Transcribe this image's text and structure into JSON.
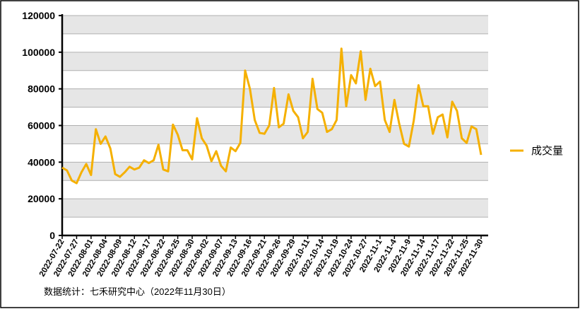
{
  "chart_data": {
    "type": "line",
    "categories": [
      "2022-07-22",
      null,
      null,
      "2022-07-27",
      null,
      null,
      "2022-08-01",
      null,
      null,
      "2022-08-04",
      null,
      null,
      "2022-08-09",
      null,
      null,
      "2022-08-12",
      null,
      null,
      "2022-08-17",
      null,
      null,
      "2022-08-22",
      null,
      null,
      "2022-08-25",
      null,
      null,
      "2022-08-30",
      null,
      null,
      "2022-09-02",
      null,
      null,
      "2022-09-07",
      null,
      null,
      "2022-09-13",
      null,
      null,
      "2022-09-16",
      null,
      null,
      "2022-09-21",
      null,
      null,
      "2022-09-26",
      null,
      null,
      "2022-09-29",
      null,
      null,
      "2022-10-11",
      null,
      null,
      "2022-10-14",
      null,
      null,
      "2022-10-19",
      null,
      null,
      "2022-10-24",
      null,
      null,
      "2022-10-27",
      null,
      null,
      "2022-11-1",
      null,
      null,
      "2022-11-4",
      null,
      null,
      "2022-11-9",
      null,
      null,
      "2022-11-14",
      null,
      null,
      "2022-11-17",
      null,
      null,
      "2022-11-22",
      null,
      null,
      "2022-11-25",
      null,
      null,
      "2022-11-30"
    ],
    "series": [
      {
        "name": "成交量",
        "color": "#f5b000",
        "values": [
          37000,
          35500,
          30000,
          28500,
          34500,
          39000,
          33000,
          58000,
          50000,
          54000,
          47500,
          33500,
          32000,
          34500,
          37500,
          36000,
          37000,
          41000,
          39500,
          41000,
          49500,
          36000,
          35000,
          60500,
          55000,
          46500,
          46500,
          41500,
          64000,
          53000,
          49000,
          40500,
          46000,
          38000,
          35000,
          48000,
          46000,
          50500,
          90000,
          80000,
          63000,
          56000,
          55500,
          60000,
          80500,
          59000,
          61000,
          77000,
          68000,
          64500,
          53000,
          56500,
          85500,
          69000,
          67000,
          56500,
          58000,
          63000,
          102000,
          70500,
          87500,
          83000,
          100500,
          74000,
          91000,
          81500,
          84000,
          63000,
          56500,
          74000,
          61000,
          50000,
          48500,
          62500,
          82000,
          70500,
          70500,
          55500,
          64500,
          66000,
          53500,
          73000,
          68000,
          53000,
          50500,
          59500,
          58000,
          44000
        ]
      }
    ],
    "ylim": [
      0,
      120000
    ],
    "yticks": [
      0,
      20000,
      40000,
      60000,
      80000,
      100000,
      120000
    ],
    "grid": true,
    "legend": "right",
    "footnote": "数据统计：七禾研究中心（2022年11月30日）"
  }
}
